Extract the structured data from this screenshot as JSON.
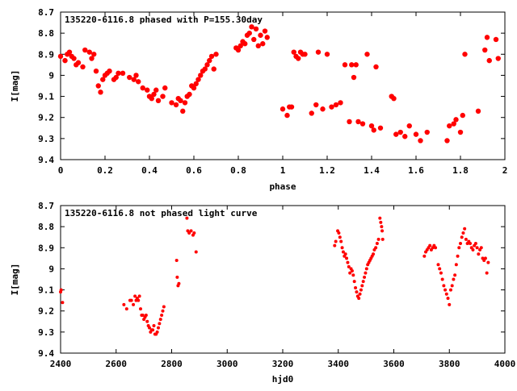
{
  "chart_data": [
    {
      "type": "scatter",
      "title": "135220-6116.8 phased with P=155.30day",
      "xlabel": "phase",
      "ylabel": "I[mag]",
      "xlim": [
        0,
        2
      ],
      "ylim": [
        9.4,
        8.7
      ],
      "y_inverted": true,
      "xticks": [
        "0",
        "0.2",
        "0.4",
        "0.6",
        "0.8",
        "1",
        "1.2",
        "1.4",
        "1.6",
        "1.8",
        "2"
      ],
      "yticks": [
        "8.7",
        "8.8",
        "8.9",
        "9",
        "9.1",
        "9.2",
        "9.3",
        "9.4"
      ],
      "marker_color": "#ff0000",
      "marker": "filled-circle-large",
      "series": [
        {
          "x": [
            0.0,
            0.02,
            0.03,
            0.04,
            0.05,
            0.06,
            0.07,
            0.08,
            0.1,
            0.11,
            0.13,
            0.14,
            0.15,
            0.16,
            0.17,
            0.18,
            0.19,
            0.2,
            0.21,
            0.22,
            0.24,
            0.25,
            0.26,
            0.28,
            0.31,
            0.33,
            0.34,
            0.35,
            0.37,
            0.39,
            0.4,
            0.41,
            0.42,
            0.43,
            0.44,
            0.46,
            0.47,
            0.5,
            0.52,
            0.53,
            0.54,
            0.55,
            0.56,
            0.57,
            0.58,
            0.59,
            0.6,
            0.61,
            0.62,
            0.63,
            0.64,
            0.65,
            0.66,
            0.67,
            0.68,
            0.69,
            0.7,
            0.79,
            0.8,
            0.81,
            0.82,
            0.83,
            0.84,
            0.85,
            0.86,
            0.87,
            0.88,
            0.89,
            0.9,
            0.91,
            0.92,
            0.93,
            1.0,
            1.02,
            1.03,
            1.04,
            1.05,
            1.06,
            1.07,
            1.08,
            1.09,
            1.1,
            1.13,
            1.15,
            1.16,
            1.18,
            1.2,
            1.22,
            1.24,
            1.26,
            1.28,
            1.3,
            1.31,
            1.32,
            1.33,
            1.34,
            1.36,
            1.38,
            1.4,
            1.41,
            1.42,
            1.44,
            1.49,
            1.5,
            1.51,
            1.53,
            1.55,
            1.57,
            1.6,
            1.62,
            1.65,
            1.74,
            1.75,
            1.77,
            1.78,
            1.8,
            1.81,
            1.82,
            1.88,
            1.91,
            1.92,
            1.93,
            1.96,
            1.97
          ],
          "y": [
            8.91,
            8.93,
            8.9,
            8.89,
            8.91,
            8.92,
            8.95,
            8.94,
            8.96,
            8.88,
            8.89,
            8.92,
            8.9,
            8.98,
            9.05,
            9.08,
            9.02,
            9.0,
            8.99,
            8.98,
            9.02,
            9.01,
            8.99,
            8.99,
            9.01,
            9.02,
            9.0,
            9.03,
            9.06,
            9.07,
            9.1,
            9.11,
            9.09,
            9.07,
            9.12,
            9.1,
            9.06,
            9.13,
            9.14,
            9.11,
            9.12,
            9.17,
            9.13,
            9.1,
            9.09,
            9.05,
            9.06,
            9.04,
            9.02,
            9.0,
            8.98,
            8.97,
            8.95,
            8.93,
            8.91,
            8.97,
            8.9,
            8.87,
            8.88,
            8.86,
            8.84,
            8.85,
            8.81,
            8.8,
            8.77,
            8.83,
            8.78,
            8.86,
            8.81,
            8.85,
            8.79,
            8.82,
            9.16,
            9.19,
            9.15,
            9.15,
            8.89,
            8.91,
            8.92,
            8.89,
            8.9,
            8.9,
            9.18,
            9.14,
            8.89,
            9.16,
            8.9,
            9.15,
            9.14,
            9.13,
            8.95,
            9.22,
            8.95,
            9.01,
            8.95,
            9.22,
            9.23,
            8.9,
            9.24,
            9.26,
            8.96,
            9.25,
            9.1,
            9.11,
            9.28,
            9.27,
            9.29,
            9.24,
            9.28,
            9.31,
            9.27,
            9.31,
            9.24,
            9.23,
            9.21,
            9.27,
            9.19,
            8.9,
            9.17,
            8.88,
            8.82,
            8.93,
            8.83,
            8.92
          ]
        }
      ]
    },
    {
      "type": "scatter",
      "title": "135220-6116.8 not phased light curve",
      "xlabel": "hjd0",
      "ylabel": "I[mag]",
      "xlim": [
        2400,
        4000
      ],
      "ylim": [
        9.4,
        8.7
      ],
      "y_inverted": true,
      "xticks": [
        "2400",
        "2600",
        "2800",
        "3000",
        "3200",
        "3400",
        "3600",
        "3800",
        "4000"
      ],
      "yticks": [
        "8.7",
        "8.8",
        "8.9",
        "9",
        "9.1",
        "9.2",
        "9.3",
        "9.4"
      ],
      "marker_color": "#ff0000",
      "marker": "filled-circle-small",
      "series": [
        {
          "x": [
            2400,
            2402,
            2407,
            2628,
            2638,
            2650,
            2655,
            2662,
            2668,
            2672,
            2676,
            2680,
            2684,
            2688,
            2692,
            2696,
            2700,
            2704,
            2708,
            2712,
            2716,
            2720,
            2724,
            2728,
            2732,
            2736,
            2740,
            2744,
            2748,
            2752,
            2756,
            2760,
            2764,
            2768,
            2772,
            2818,
            2820,
            2823,
            2826,
            2855,
            2858,
            2863,
            2870,
            2877,
            2881,
            2888,
            3387,
            3391,
            3398,
            3402,
            3406,
            3410,
            3414,
            3418,
            3422,
            3426,
            3430,
            3434,
            3438,
            3442,
            3446,
            3450,
            3454,
            3458,
            3462,
            3466,
            3470,
            3474,
            3478,
            3482,
            3486,
            3490,
            3494,
            3498,
            3502,
            3506,
            3510,
            3514,
            3518,
            3522,
            3526,
            3530,
            3535,
            3540,
            3545,
            3550,
            3553,
            3556,
            3558,
            3560,
            3710,
            3715,
            3720,
            3725,
            3730,
            3735,
            3740,
            3745,
            3750,
            3760,
            3765,
            3770,
            3775,
            3780,
            3785,
            3790,
            3795,
            3800,
            3805,
            3810,
            3815,
            3820,
            3825,
            3830,
            3835,
            3840,
            3845,
            3850,
            3855,
            3860,
            3865,
            3870,
            3875,
            3880,
            3885,
            3890,
            3895,
            3900,
            3905,
            3910,
            3915,
            3920,
            3925,
            3930,
            3935,
            3940
          ],
          "y": [
            9.11,
            9.1,
            9.16,
            9.17,
            9.19,
            9.15,
            9.15,
            9.17,
            9.13,
            9.15,
            9.14,
            9.15,
            9.13,
            9.19,
            9.22,
            9.22,
            9.24,
            9.23,
            9.22,
            9.25,
            9.27,
            9.28,
            9.3,
            9.29,
            9.29,
            9.27,
            9.31,
            9.31,
            9.3,
            9.28,
            9.26,
            9.24,
            9.22,
            9.2,
            9.18,
            8.96,
            9.04,
            9.08,
            9.07,
            8.76,
            8.82,
            8.83,
            8.82,
            8.84,
            8.83,
            8.92,
            8.89,
            8.87,
            8.82,
            8.83,
            8.85,
            8.87,
            8.9,
            8.92,
            8.94,
            8.93,
            8.95,
            8.97,
            8.99,
            9.02,
            9.0,
            9.01,
            9.03,
            9.06,
            9.09,
            9.11,
            9.13,
            9.14,
            9.12,
            9.1,
            9.08,
            9.06,
            9.04,
            9.02,
            9.0,
            8.98,
            8.97,
            8.96,
            8.95,
            8.94,
            8.93,
            8.91,
            8.9,
            8.88,
            8.86,
            8.76,
            8.78,
            8.8,
            8.82,
            8.86,
            8.94,
            8.92,
            8.91,
            8.9,
            8.89,
            8.91,
            8.9,
            8.89,
            8.9,
            8.98,
            9.0,
            9.02,
            9.05,
            9.08,
            9.1,
            9.12,
            9.14,
            9.17,
            9.1,
            9.08,
            9.05,
            9.03,
            8.98,
            8.94,
            8.9,
            8.88,
            8.85,
            8.83,
            8.81,
            8.86,
            8.88,
            8.87,
            8.88,
            8.9,
            8.91,
            8.89,
            8.88,
            8.9,
            8.93,
            8.91,
            8.9,
            8.95,
            8.96,
            8.95,
            9.02,
            8.97
          ]
        }
      ]
    }
  ]
}
